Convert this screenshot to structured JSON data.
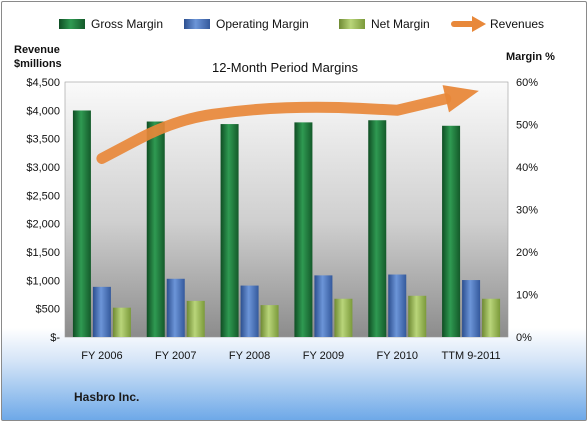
{
  "chart_data": {
    "type": "bar",
    "title": "12-Month Period Margins",
    "company": "Hasbro Inc.",
    "categories": [
      "FY 2006",
      "FY 2007",
      "FY 2008",
      "FY 2009",
      "FY 2010",
      "TTM 9-2011"
    ],
    "left_axis": {
      "label_line1": "Revenue",
      "label_line2": "$millions",
      "min": 0,
      "max": 4500,
      "step": 500,
      "ticks": [
        "$-",
        "$500",
        "$1,000",
        "$1,500",
        "$2,000",
        "$2,500",
        "$3,000",
        "$3,500",
        "$4,000",
        "$4,500"
      ]
    },
    "right_axis": {
      "label": "Margin %",
      "min": 0,
      "max": 60,
      "step": 10,
      "ticks": [
        "0%",
        "10%",
        "20%",
        "30%",
        "40%",
        "50%",
        "60%"
      ]
    },
    "series": [
      {
        "name": "Gross Margin",
        "axis": "right",
        "color": "#1e7a3c",
        "values": [
          53.3,
          50.7,
          50.1,
          50.5,
          51.0,
          49.7
        ]
      },
      {
        "name": "Operating Margin",
        "axis": "right",
        "color": "#4472c4",
        "values": [
          11.8,
          13.7,
          12.1,
          14.5,
          14.7,
          13.4
        ]
      },
      {
        "name": "Net Margin",
        "axis": "right",
        "color": "#9bbb59",
        "values": [
          6.9,
          8.5,
          7.5,
          9.0,
          9.7,
          9.0
        ]
      },
      {
        "name": "Revenues",
        "axis": "left",
        "type": "line",
        "color": "#e8883a",
        "values": [
          3151,
          3838,
          4022,
          4068,
          4002,
          4310
        ]
      }
    ],
    "legend_position": "top",
    "grid": false
  }
}
